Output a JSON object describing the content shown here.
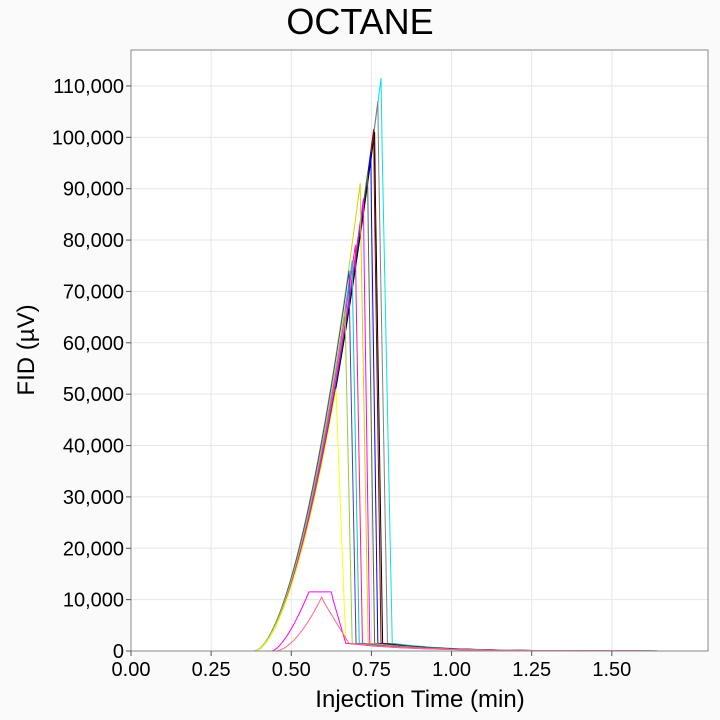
{
  "chart_data": {
    "type": "line",
    "title": "OCTANE",
    "xlabel": "Injection Time (min)",
    "ylabel": "FID (µV)",
    "xlim": [
      0,
      1.8
    ],
    "ylim": [
      0,
      117000
    ],
    "grid": true,
    "x_ticks": [
      0,
      0.25,
      0.5,
      0.75,
      1.0,
      1.25,
      1.5
    ],
    "x_tick_labels": [
      "0.00",
      "0.25",
      "0.50",
      "0.75",
      "1.00",
      "1.25",
      "1.50"
    ],
    "y_ticks": [
      0,
      10000,
      20000,
      30000,
      40000,
      50000,
      60000,
      70000,
      80000,
      90000,
      100000,
      110000
    ],
    "y_tick_labels": [
      "0",
      "10,000",
      "20,000",
      "30,000",
      "40,000",
      "50,000",
      "60,000",
      "70,000",
      "80,000",
      "90,000",
      "100,000",
      "110,000"
    ],
    "series": [
      {
        "color": "#00e5e5",
        "onset": 0.385,
        "peak_x": 0.78,
        "peak_y": 111500,
        "fall_end": 0.815
      },
      {
        "color": "#808080",
        "onset": 0.385,
        "peak_x": 0.77,
        "peak_y": 107000,
        "fall_end": 0.8
      },
      {
        "color": "#000000",
        "onset": 0.385,
        "peak_x": 0.76,
        "peak_y": 101000,
        "fall_end": 0.785
      },
      {
        "color": "#8b0000",
        "onset": 0.385,
        "peak_x": 0.757,
        "peak_y": 101500,
        "fall_end": 0.78
      },
      {
        "color": "#0000ff",
        "onset": 0.385,
        "peak_x": 0.748,
        "peak_y": 97000,
        "fall_end": 0.77
      },
      {
        "color": "#556b2f",
        "onset": 0.385,
        "peak_x": 0.738,
        "peak_y": 93000,
        "fall_end": 0.76
      },
      {
        "color": "#ff00ff",
        "onset": 0.385,
        "peak_x": 0.725,
        "peak_y": 88000,
        "fall_end": 0.745
      },
      {
        "color": "#d4d400",
        "onset": 0.385,
        "peak_x": 0.715,
        "peak_y": 91000,
        "fall_end": 0.74
      },
      {
        "color": "#ff1493",
        "onset": 0.385,
        "peak_x": 0.7,
        "peak_y": 79000,
        "fall_end": 0.722
      },
      {
        "color": "#00cccc",
        "onset": 0.385,
        "peak_x": 0.69,
        "peak_y": 76000,
        "fall_end": 0.712
      },
      {
        "color": "#4040c0",
        "onset": 0.385,
        "peak_x": 0.68,
        "peak_y": 74000,
        "fall_end": 0.702
      },
      {
        "color": "#9acd32",
        "onset": 0.385,
        "peak_x": 0.668,
        "peak_y": 66500,
        "fall_end": 0.69
      },
      {
        "color": "#ffff00",
        "onset": 0.385,
        "peak_x": 0.64,
        "peak_y": 51000,
        "fall_end": 0.67
      },
      {
        "color": "#ff00ff",
        "onset": 0.44,
        "peak_x": 0.6,
        "peak_y": 11500,
        "fall_end": 0.67,
        "flat_top": true
      },
      {
        "color": "#ff6688",
        "onset": 0.45,
        "peak_x": 0.595,
        "peak_y": 10500,
        "fall_end": 0.68
      }
    ]
  }
}
